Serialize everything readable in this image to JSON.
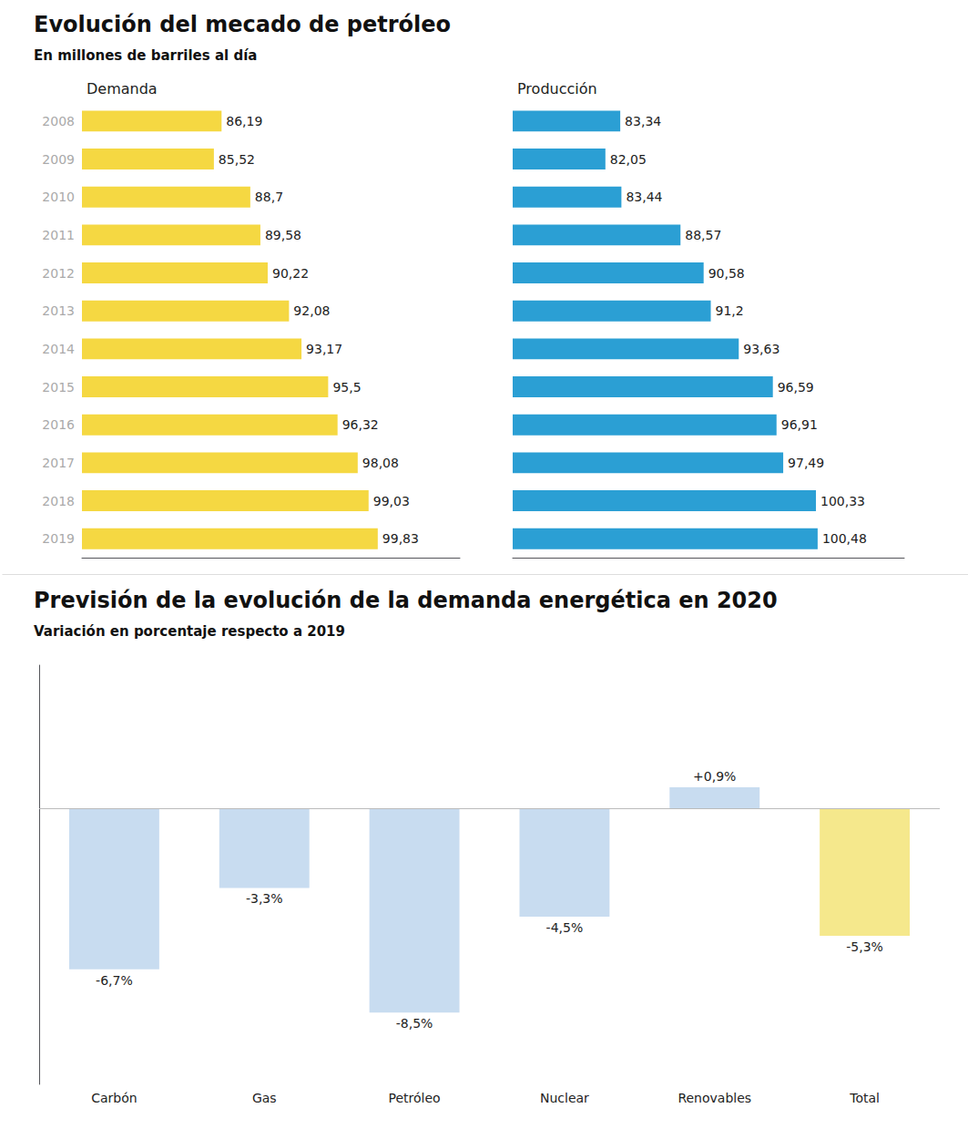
{
  "chart_data": [
    {
      "type": "bar",
      "orientation": "horizontal",
      "title": "Evolución del mecado de petróleo",
      "subtitle": "En millones de barriles al día",
      "categories": [
        2008,
        2009,
        2010,
        2011,
        2012,
        2013,
        2014,
        2015,
        2016,
        2017,
        2018,
        2019
      ],
      "series": [
        {
          "name": "Demanda",
          "color": "#F5D842",
          "values": [
            86.19,
            85.52,
            88.7,
            89.58,
            90.22,
            92.08,
            93.17,
            95.5,
            96.32,
            98.08,
            99.03,
            99.83
          ],
          "value_labels": [
            "86,19",
            "85,52",
            "88,7",
            "89,58",
            "90,22",
            "92,08",
            "93,17",
            "95,5",
            "96,32",
            "98,08",
            "99,03",
            "99,83"
          ]
        }
      ],
      "xlim": [
        74,
        107
      ],
      "grid": false,
      "data_labels": true,
      "tick_labels": "y"
    },
    {
      "type": "bar",
      "orientation": "horizontal",
      "categories": [
        2008,
        2009,
        2010,
        2011,
        2012,
        2013,
        2014,
        2015,
        2016,
        2017,
        2018,
        2019
      ],
      "series": [
        {
          "name": "Producción",
          "color": "#2B9FD4",
          "values": [
            83.34,
            82.05,
            83.44,
            88.57,
            90.58,
            91.2,
            93.63,
            96.59,
            96.91,
            97.49,
            100.33,
            100.48
          ],
          "value_labels": [
            "83,34",
            "82,05",
            "83,44",
            "88,57",
            "90,58",
            "91,2",
            "93,63",
            "96,59",
            "96,91",
            "97,49",
            "100,33",
            "100,48"
          ]
        }
      ],
      "xlim": [
        74,
        108
      ],
      "grid": false,
      "data_labels": true,
      "tick_labels": false
    },
    {
      "type": "bar",
      "title": "Previsión de la evolución de la demanda energética en 2020",
      "subtitle": "Variación en porcentaje respecto a 2019",
      "categories": [
        "Carbón",
        "Gas",
        "Petróleo",
        "Nuclear",
        "Renovables",
        "Total"
      ],
      "values": [
        -6.7,
        -3.3,
        -8.5,
        -4.5,
        0.9,
        -5.3
      ],
      "value_labels": [
        "-6,7%",
        "-3,3%",
        "-8,5%",
        "-4,5%",
        "+0,9%",
        "-5,3%"
      ],
      "colors": [
        "#C8DCF0",
        "#C8DCF0",
        "#C8DCF0",
        "#C8DCF0",
        "#C8DCF0",
        "#F5E88C"
      ],
      "ylim": [
        -11.5,
        6
      ],
      "grid": false,
      "data_labels": true,
      "tick_labels": "x"
    }
  ]
}
